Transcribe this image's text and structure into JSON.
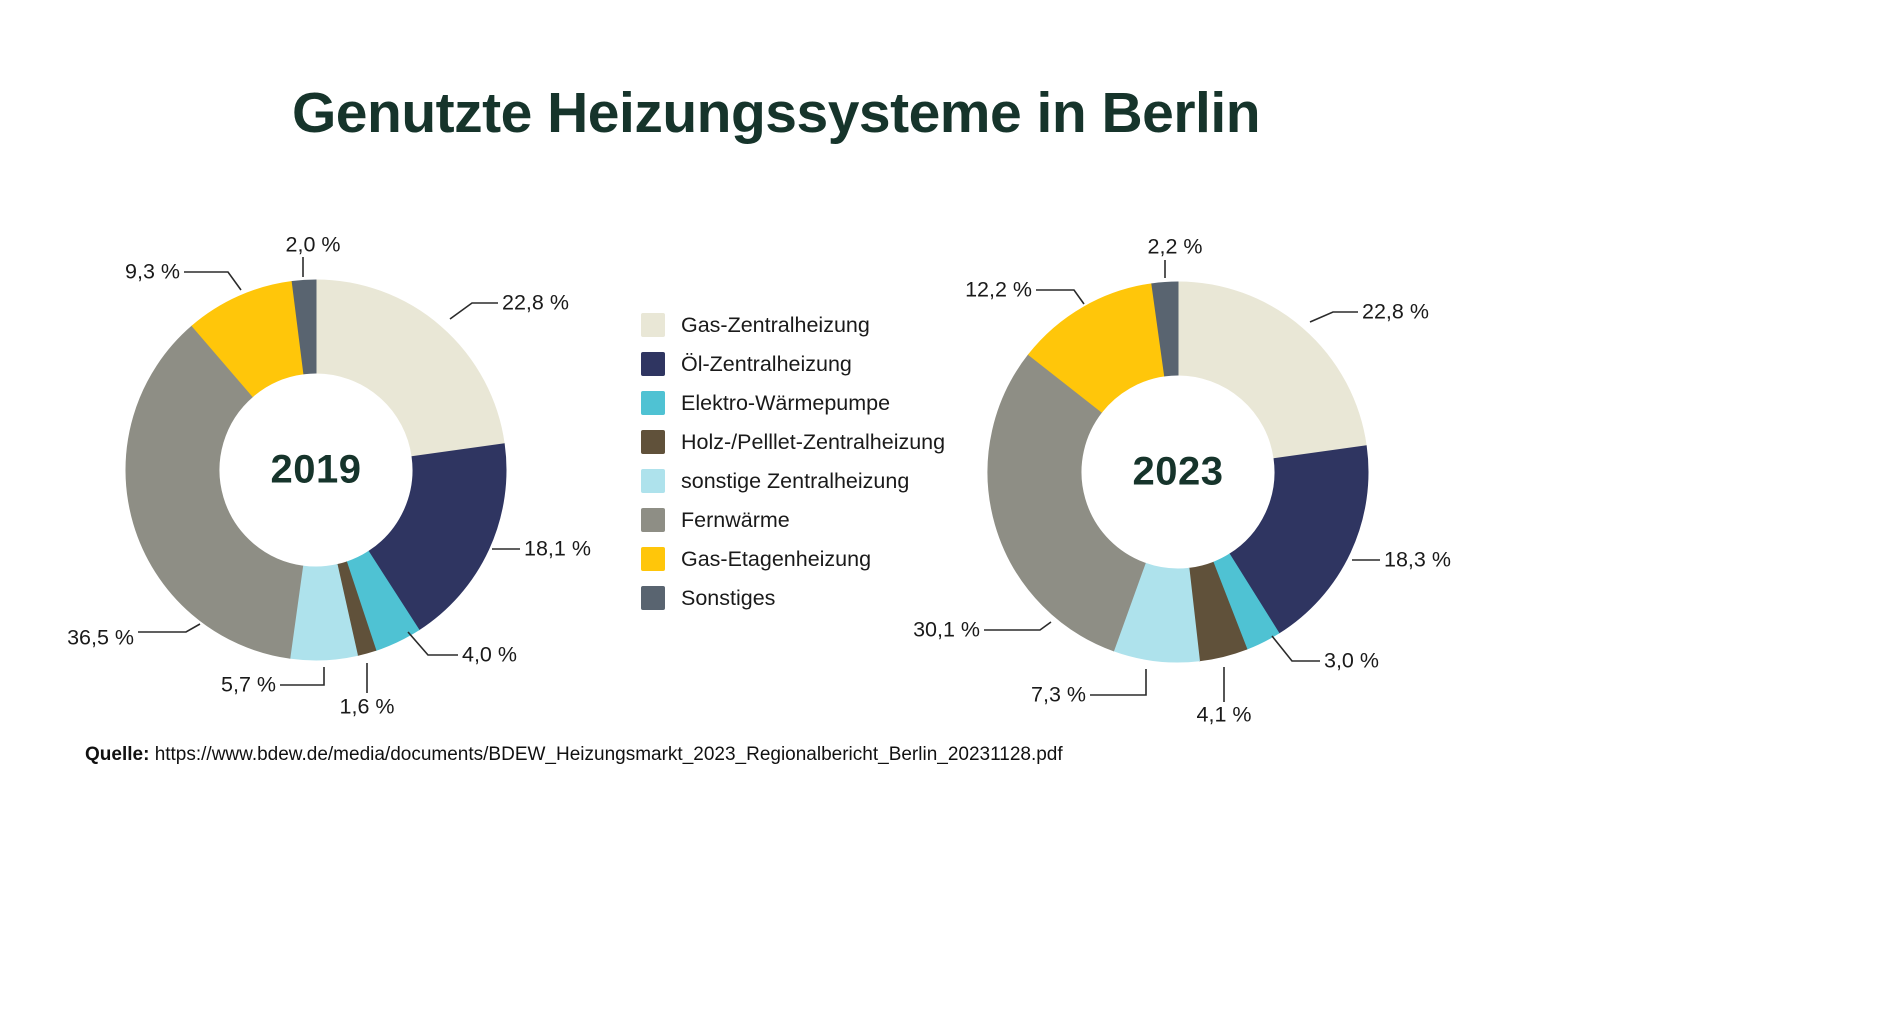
{
  "title": "Genutzte Heizungssysteme in Berlin",
  "legend": {
    "items": [
      {
        "label": "Gas-Zentralheizung",
        "color": "#e9e7d6"
      },
      {
        "label": "Öl-Zentralheizung",
        "color": "#2f3561"
      },
      {
        "label": "Elektro-Wärmepumpe",
        "color": "#4fc2d3"
      },
      {
        "label": "Holz-/Pelllet-Zentralheizung",
        "color": "#60513a"
      },
      {
        "label": "sonstige Zentralheizung",
        "color": "#aee2ec"
      },
      {
        "label": "Fernwärme",
        "color": "#8e8e85"
      },
      {
        "label": "Gas-Etagenheizung",
        "color": "#ffc60a"
      },
      {
        "label": "Sonstiges",
        "color": "#596470"
      }
    ]
  },
  "chart_data": {
    "type": "pie",
    "variant": "donut",
    "title": "Genutzte Heizungssysteme in Berlin",
    "legend_position": "center-between-charts",
    "start_angle_deg": 0,
    "direction": "clockwise",
    "categories": [
      "Gas-Zentralheizung",
      "Öl-Zentralheizung",
      "Elektro-Wärmepumpe",
      "Holz-/Pelllet-Zentralheizung",
      "sonstige Zentralheizung",
      "Fernwärme",
      "Gas-Etagenheizung",
      "Sonstiges"
    ],
    "colors": [
      "#e9e7d6",
      "#2f3561",
      "#4fc2d3",
      "#60513a",
      "#aee2ec",
      "#8e8e85",
      "#ffc60a",
      "#596470"
    ],
    "charts": [
      {
        "center_label": "2019",
        "values": [
          22.8,
          18.1,
          4.0,
          1.6,
          5.7,
          36.5,
          9.3,
          2.0
        ],
        "labels": [
          "22,8 %",
          "18,1 %",
          "4,0 %",
          "1,6 %",
          "5,7 %",
          "36,5 %",
          "9,3 %",
          "2,0 %"
        ]
      },
      {
        "center_label": "2023",
        "values": [
          22.8,
          18.3,
          3.0,
          4.1,
          7.3,
          30.1,
          12.2,
          2.2
        ],
        "labels": [
          "22,8 %",
          "18,3 %",
          "3,0 %",
          "4,1 %",
          "7,3 %",
          "30,1 %",
          "12,2 %",
          "2,2 %"
        ]
      }
    ]
  },
  "source": {
    "label": "Quelle:",
    "url": "https://www.bdew.de/media/documents/BDEW_Heizungsmarkt_2023_Regionalbericht_Berlin_20231128.pdf"
  }
}
